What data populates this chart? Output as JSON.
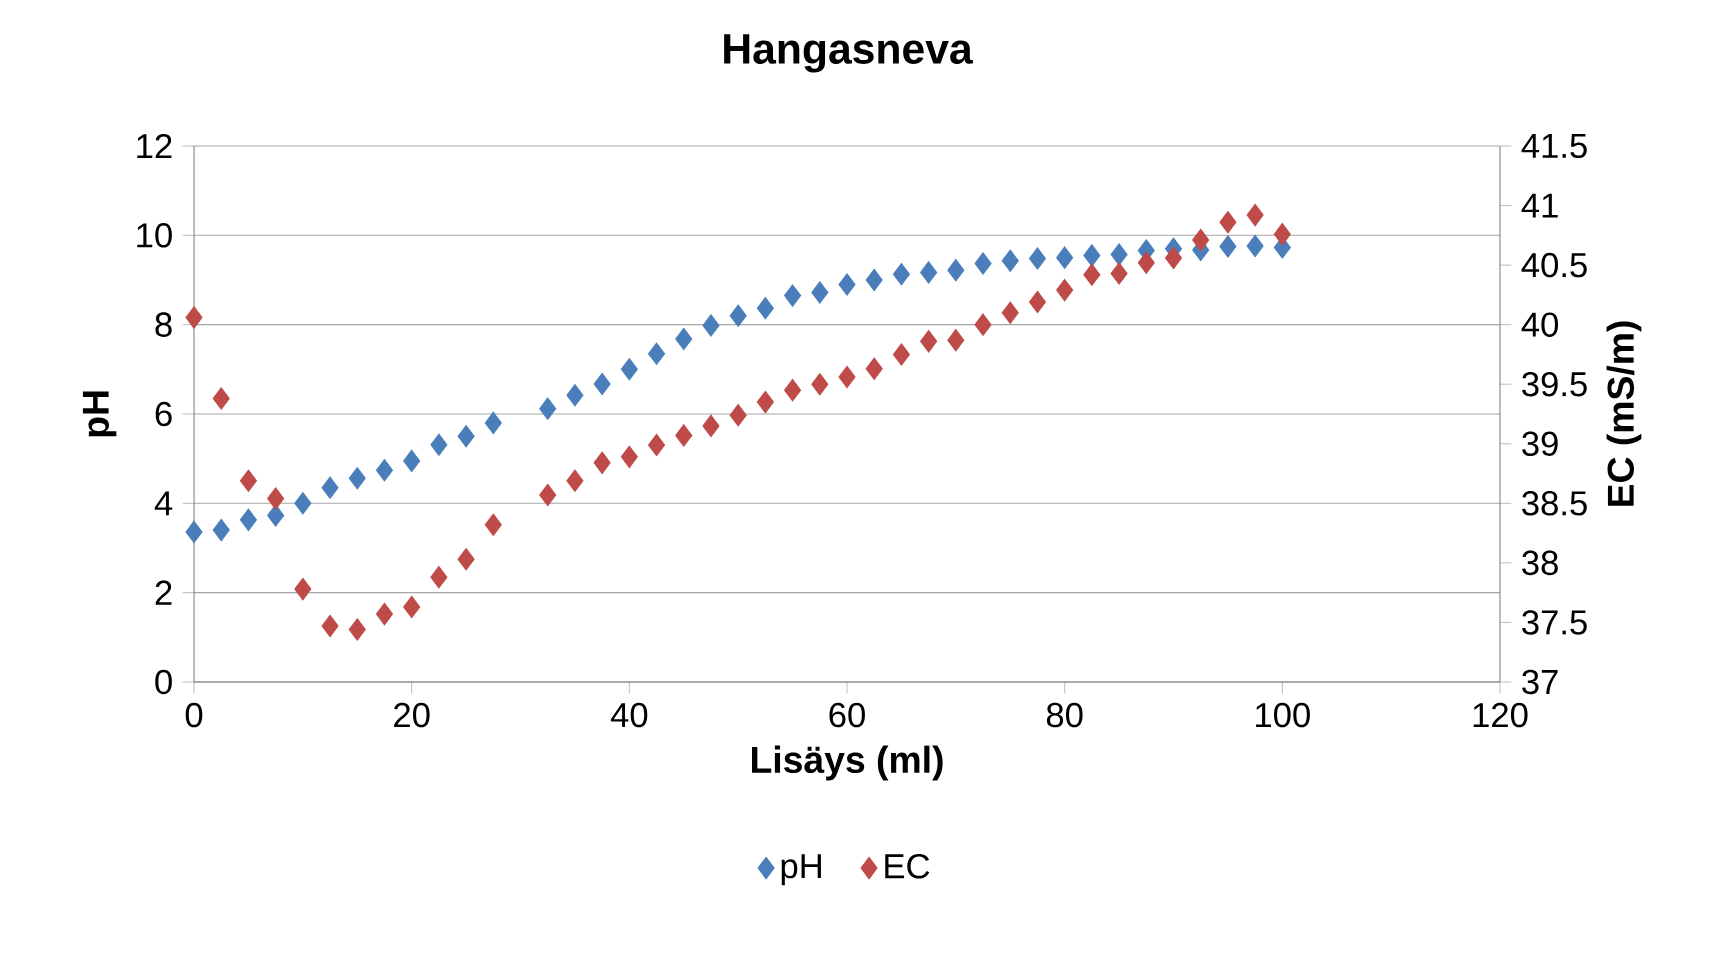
{
  "chart_data": {
    "type": "scatter",
    "title": "Hangasneva",
    "xlabel": "Lisäys (ml)",
    "ylabel": "pH",
    "y2label": "EC (mS/m)",
    "x": [
      0,
      2.5,
      5,
      7.5,
      10,
      12.5,
      15,
      17.5,
      20,
      22.5,
      25,
      27.5,
      32.5,
      35,
      37.5,
      40,
      42.5,
      45,
      47.5,
      50,
      52.5,
      55,
      57.5,
      60,
      62.5,
      65,
      67.5,
      70,
      72.5,
      75,
      77.5,
      80,
      82.5,
      85,
      87.5,
      90,
      92.5,
      95,
      97.5,
      100
    ],
    "series": [
      {
        "name": "pH",
        "color": "#4a7ebb",
        "values": [
          3.36,
          3.4,
          3.63,
          3.73,
          4.0,
          4.35,
          4.56,
          4.74,
          4.95,
          5.31,
          5.5,
          5.8,
          6.12,
          6.42,
          6.67,
          7.0,
          7.35,
          7.68,
          7.98,
          8.2,
          8.37,
          8.65,
          8.72,
          8.9,
          9.0,
          9.13,
          9.17,
          9.22,
          9.37,
          9.43,
          9.48,
          9.5,
          9.55,
          9.57,
          9.66,
          9.7,
          9.67,
          9.75,
          9.76,
          9.73
        ]
      },
      {
        "name": "EC",
        "color": "#be4b48",
        "axis": "y2",
        "values": [
          40.06,
          39.38,
          38.69,
          38.54,
          37.78,
          37.47,
          37.44,
          37.57,
          37.63,
          37.88,
          38.03,
          38.32,
          38.57,
          38.69,
          38.84,
          38.89,
          38.99,
          39.07,
          39.15,
          39.24,
          39.35,
          39.45,
          39.5,
          39.56,
          39.63,
          39.75,
          39.86,
          39.87,
          40.0,
          40.1,
          40.19,
          40.29,
          40.42,
          40.43,
          40.52,
          40.56,
          40.71,
          40.86,
          40.92,
          40.76
        ]
      }
    ],
    "xlim": [
      0,
      120
    ],
    "xticks": [
      0,
      20,
      40,
      60,
      80,
      100,
      120
    ],
    "ylim": [
      0,
      12
    ],
    "yticks": [
      0,
      2,
      4,
      6,
      8,
      10,
      12
    ],
    "y2lim": [
      37,
      41.5
    ],
    "y2ticks": [
      37,
      37.5,
      38,
      38.5,
      39,
      39.5,
      40,
      40.5,
      41,
      41.5
    ],
    "grid": "y",
    "legend": "bottom",
    "marker": "diamond"
  }
}
